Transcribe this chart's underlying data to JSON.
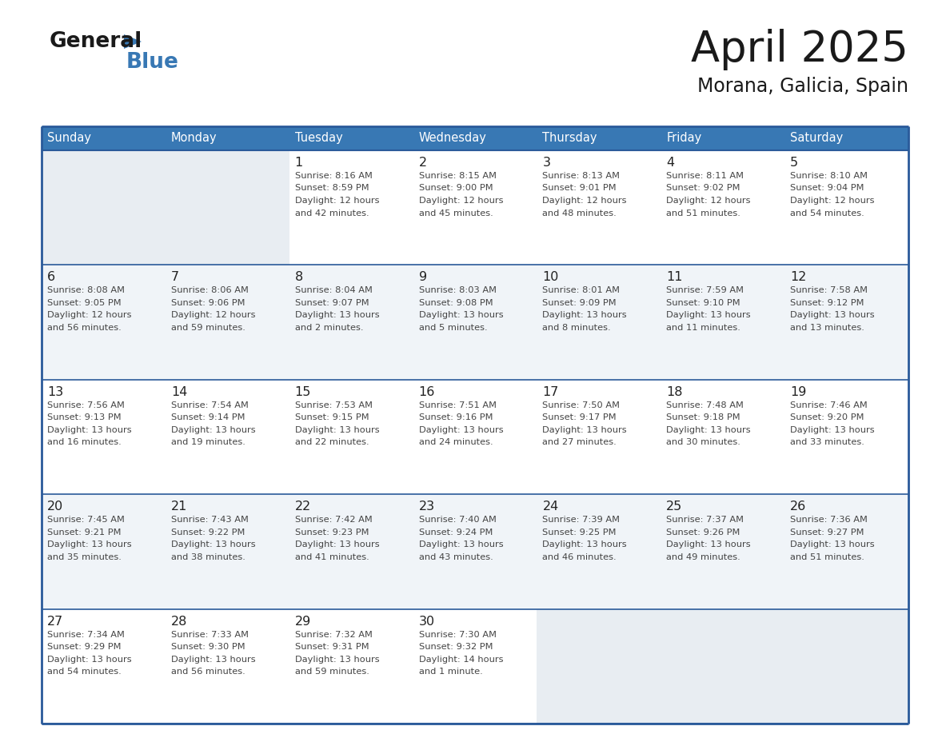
{
  "title": "April 2025",
  "subtitle": "Morana, Galicia, Spain",
  "header_bg_color": "#3878b4",
  "header_text_color": "#ffffff",
  "cell_bg_light": "#f0f4f8",
  "cell_bg_white": "#ffffff",
  "cell_bg_empty": "#e8edf2",
  "cell_text_color": "#444444",
  "day_number_color": "#222222",
  "border_color": "#2a5a9a",
  "days_of_week": [
    "Sunday",
    "Monday",
    "Tuesday",
    "Wednesday",
    "Thursday",
    "Friday",
    "Saturday"
  ],
  "weeks": [
    [
      {
        "day": null,
        "info": null
      },
      {
        "day": null,
        "info": null
      },
      {
        "day": "1",
        "info": "Sunrise: 8:16 AM\nSunset: 8:59 PM\nDaylight: 12 hours\nand 42 minutes."
      },
      {
        "day": "2",
        "info": "Sunrise: 8:15 AM\nSunset: 9:00 PM\nDaylight: 12 hours\nand 45 minutes."
      },
      {
        "day": "3",
        "info": "Sunrise: 8:13 AM\nSunset: 9:01 PM\nDaylight: 12 hours\nand 48 minutes."
      },
      {
        "day": "4",
        "info": "Sunrise: 8:11 AM\nSunset: 9:02 PM\nDaylight: 12 hours\nand 51 minutes."
      },
      {
        "day": "5",
        "info": "Sunrise: 8:10 AM\nSunset: 9:04 PM\nDaylight: 12 hours\nand 54 minutes."
      }
    ],
    [
      {
        "day": "6",
        "info": "Sunrise: 8:08 AM\nSunset: 9:05 PM\nDaylight: 12 hours\nand 56 minutes."
      },
      {
        "day": "7",
        "info": "Sunrise: 8:06 AM\nSunset: 9:06 PM\nDaylight: 12 hours\nand 59 minutes."
      },
      {
        "day": "8",
        "info": "Sunrise: 8:04 AM\nSunset: 9:07 PM\nDaylight: 13 hours\nand 2 minutes."
      },
      {
        "day": "9",
        "info": "Sunrise: 8:03 AM\nSunset: 9:08 PM\nDaylight: 13 hours\nand 5 minutes."
      },
      {
        "day": "10",
        "info": "Sunrise: 8:01 AM\nSunset: 9:09 PM\nDaylight: 13 hours\nand 8 minutes."
      },
      {
        "day": "11",
        "info": "Sunrise: 7:59 AM\nSunset: 9:10 PM\nDaylight: 13 hours\nand 11 minutes."
      },
      {
        "day": "12",
        "info": "Sunrise: 7:58 AM\nSunset: 9:12 PM\nDaylight: 13 hours\nand 13 minutes."
      }
    ],
    [
      {
        "day": "13",
        "info": "Sunrise: 7:56 AM\nSunset: 9:13 PM\nDaylight: 13 hours\nand 16 minutes."
      },
      {
        "day": "14",
        "info": "Sunrise: 7:54 AM\nSunset: 9:14 PM\nDaylight: 13 hours\nand 19 minutes."
      },
      {
        "day": "15",
        "info": "Sunrise: 7:53 AM\nSunset: 9:15 PM\nDaylight: 13 hours\nand 22 minutes."
      },
      {
        "day": "16",
        "info": "Sunrise: 7:51 AM\nSunset: 9:16 PM\nDaylight: 13 hours\nand 24 minutes."
      },
      {
        "day": "17",
        "info": "Sunrise: 7:50 AM\nSunset: 9:17 PM\nDaylight: 13 hours\nand 27 minutes."
      },
      {
        "day": "18",
        "info": "Sunrise: 7:48 AM\nSunset: 9:18 PM\nDaylight: 13 hours\nand 30 minutes."
      },
      {
        "day": "19",
        "info": "Sunrise: 7:46 AM\nSunset: 9:20 PM\nDaylight: 13 hours\nand 33 minutes."
      }
    ],
    [
      {
        "day": "20",
        "info": "Sunrise: 7:45 AM\nSunset: 9:21 PM\nDaylight: 13 hours\nand 35 minutes."
      },
      {
        "day": "21",
        "info": "Sunrise: 7:43 AM\nSunset: 9:22 PM\nDaylight: 13 hours\nand 38 minutes."
      },
      {
        "day": "22",
        "info": "Sunrise: 7:42 AM\nSunset: 9:23 PM\nDaylight: 13 hours\nand 41 minutes."
      },
      {
        "day": "23",
        "info": "Sunrise: 7:40 AM\nSunset: 9:24 PM\nDaylight: 13 hours\nand 43 minutes."
      },
      {
        "day": "24",
        "info": "Sunrise: 7:39 AM\nSunset: 9:25 PM\nDaylight: 13 hours\nand 46 minutes."
      },
      {
        "day": "25",
        "info": "Sunrise: 7:37 AM\nSunset: 9:26 PM\nDaylight: 13 hours\nand 49 minutes."
      },
      {
        "day": "26",
        "info": "Sunrise: 7:36 AM\nSunset: 9:27 PM\nDaylight: 13 hours\nand 51 minutes."
      }
    ],
    [
      {
        "day": "27",
        "info": "Sunrise: 7:34 AM\nSunset: 9:29 PM\nDaylight: 13 hours\nand 54 minutes."
      },
      {
        "day": "28",
        "info": "Sunrise: 7:33 AM\nSunset: 9:30 PM\nDaylight: 13 hours\nand 56 minutes."
      },
      {
        "day": "29",
        "info": "Sunrise: 7:32 AM\nSunset: 9:31 PM\nDaylight: 13 hours\nand 59 minutes."
      },
      {
        "day": "30",
        "info": "Sunrise: 7:30 AM\nSunset: 9:32 PM\nDaylight: 14 hours\nand 1 minute."
      },
      {
        "day": null,
        "info": null
      },
      {
        "day": null,
        "info": null
      },
      {
        "day": null,
        "info": null
      }
    ]
  ],
  "logo_general_color": "#1a1a1a",
  "logo_blue_color": "#3878b4",
  "logo_triangle_color": "#3878b4",
  "title_color": "#1a1a1a",
  "subtitle_color": "#1a1a1a"
}
